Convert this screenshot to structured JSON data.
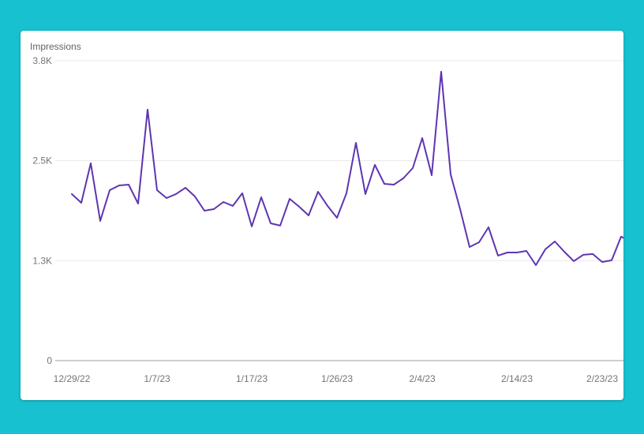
{
  "card": {
    "metric_title": "Impressions"
  },
  "colors": {
    "background": "#17c1cf",
    "line": "#5e35b1",
    "gridline": "#e8e8e8",
    "baseline": "#9e9e9e"
  },
  "chart_data": {
    "type": "line",
    "title": "Impressions",
    "xlabel": "",
    "ylabel": "Impressions",
    "ylim": [
      0,
      3750
    ],
    "grid": true,
    "legend": null,
    "y_ticks": [
      {
        "value": 0,
        "label": "0"
      },
      {
        "value": 1250,
        "label": "1.3K"
      },
      {
        "value": 2500,
        "label": "2.5K"
      },
      {
        "value": 3750,
        "label": "3.8K"
      }
    ],
    "x_ticks": [
      {
        "index": 0,
        "label": "12/29/22"
      },
      {
        "index": 9,
        "label": "1/7/23"
      },
      {
        "index": 19,
        "label": "1/17/23"
      },
      {
        "index": 28,
        "label": "1/26/23"
      },
      {
        "index": 37,
        "label": "2/4/23"
      },
      {
        "index": 47,
        "label": "2/14/23"
      },
      {
        "index": 56,
        "label": "2/23/23"
      }
    ],
    "series": [
      {
        "name": "Impressions",
        "values": [
          2083,
          1974,
          2468,
          1747,
          2132,
          2191,
          2201,
          1964,
          3139,
          2132,
          2033,
          2083,
          2162,
          2053,
          1875,
          1895,
          1984,
          1935,
          2093,
          1678,
          2043,
          1717,
          1688,
          2023,
          1925,
          1816,
          2112,
          1935,
          1786,
          2093,
          2724,
          2083,
          2448,
          2211,
          2201,
          2280,
          2408,
          2783,
          2319,
          3613,
          2329,
          1895,
          1421,
          1480,
          1668,
          1313,
          1352,
          1352,
          1372,
          1194,
          1392,
          1490,
          1362,
          1244,
          1323,
          1333,
          1234,
          1254,
          1550,
          1530
        ]
      }
    ]
  }
}
